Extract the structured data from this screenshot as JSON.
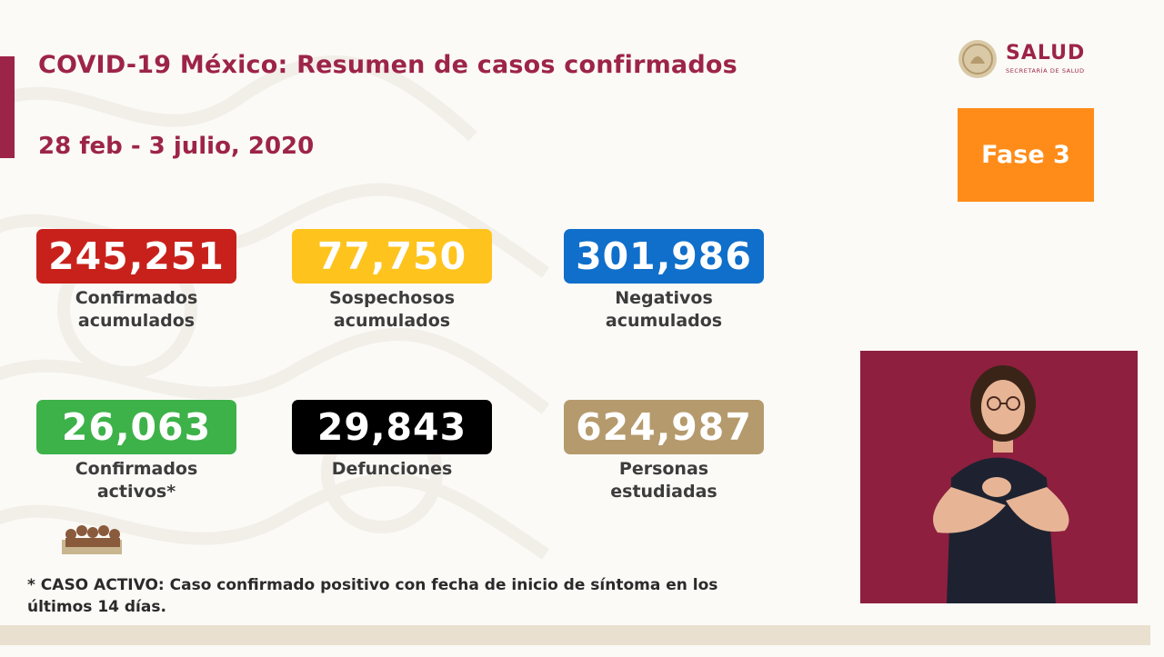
{
  "header": {
    "title": "COVID-19 México: Resumen de casos confirmados",
    "date_range": "28 feb - 3 julio, 2020"
  },
  "logo": {
    "name": "SALUD",
    "subtitle": "SECRETARÍA DE SALUD"
  },
  "phase_badge": {
    "label": "Fase 3",
    "color": "#ff8c19"
  },
  "stats": [
    {
      "value": "245,251",
      "label": "Confirmados\nacumulados",
      "color": "#c8211b"
    },
    {
      "value": "77,750",
      "label": "Sospechosos\nacumulados",
      "color": "#fec31d"
    },
    {
      "value": "301,986",
      "label": "Negativos\nacumulados",
      "color": "#0f6fca"
    },
    {
      "value": "26,063",
      "label": "Confirmados\nactivos*",
      "color": "#3db249"
    },
    {
      "value": "29,843",
      "label": "Defunciones",
      "color": "#000000"
    },
    {
      "value": "624,987",
      "label": "Personas\nestudiadas",
      "color": "#b59a6d"
    }
  ],
  "footnote": "* CASO ACTIVO: Caso confirmado positivo con fecha de inicio de síntoma en los últimos 14 días.",
  "colors": {
    "brand": "#9d2449"
  }
}
